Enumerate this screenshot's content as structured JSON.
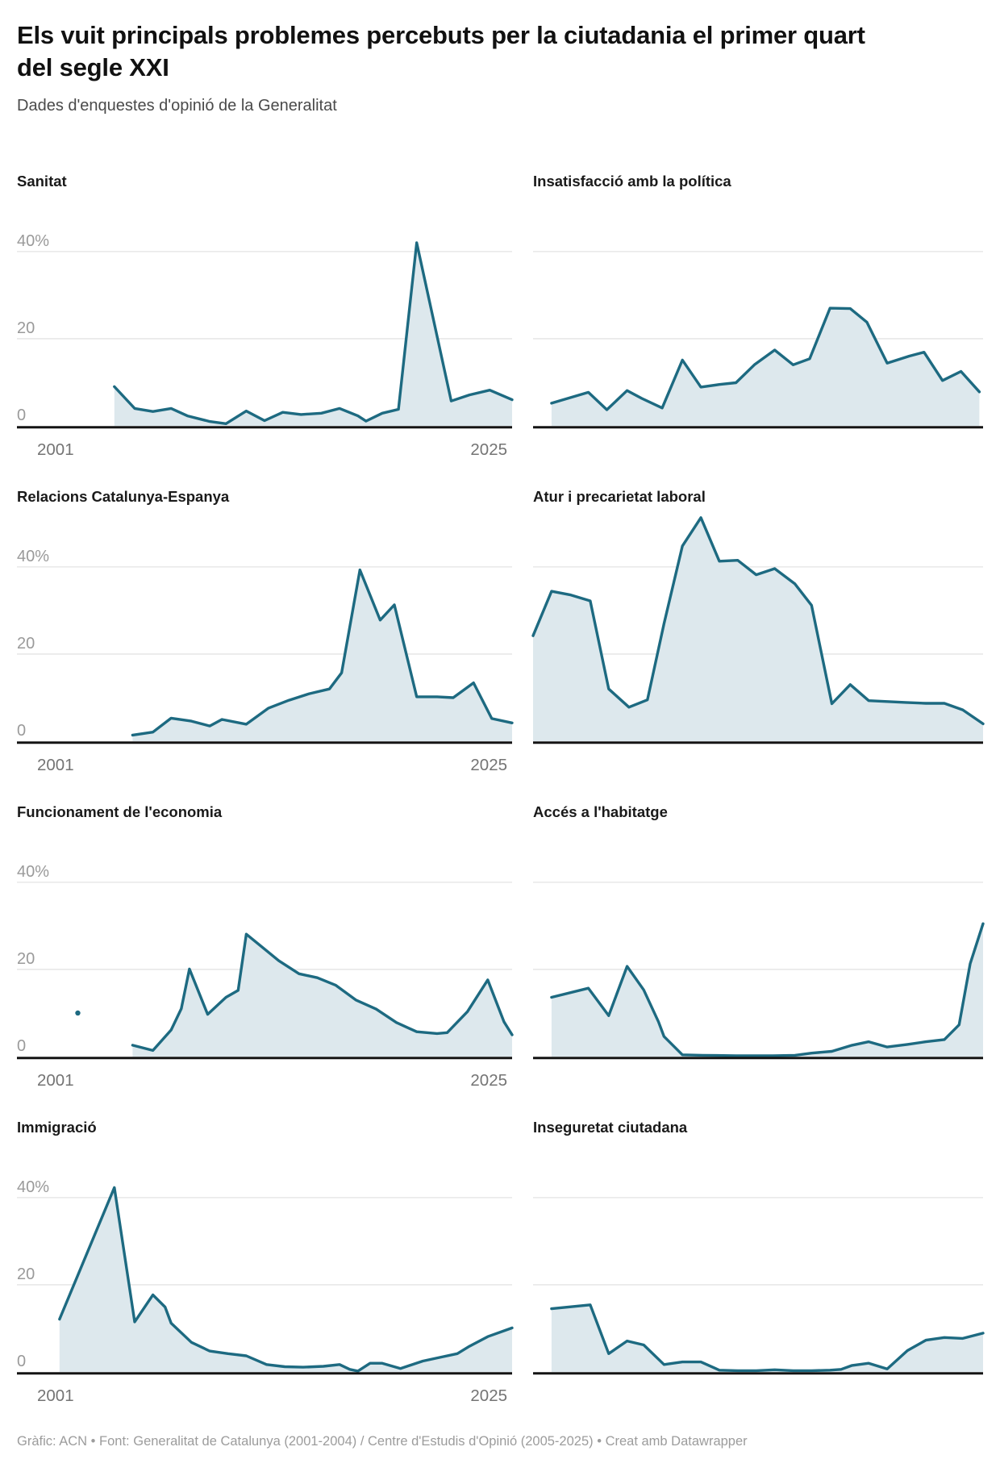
{
  "page": {
    "title": "Els vuit principals problemes percebuts per la ciutadania el primer quart del segle XXI",
    "subtitle": "Dades d'enquestes d'opinió de la Generalitat",
    "footer": "Gràfic: ACN • Font: Generalitat de Catalunya (2001-2004) / Centre d'Estudis d'Opinió (2005-2025) • Creat amb Datawrapper"
  },
  "colors": {
    "line": "#1d6a81",
    "fill": "#dde8ed",
    "grid": "#e3e3e3",
    "axis": "#141414",
    "y_label": "#9a9a9a",
    "x_label": "#747474",
    "footer": "#9c9c9c"
  },
  "axis": {
    "y_ticks": [
      "40%",
      "20",
      "0"
    ],
    "x_start": "2001",
    "x_end": "2025"
  },
  "chart_data": {
    "type": "area",
    "layout": "small-multiples 2 cols x 4 rows",
    "x_domain": [
      2001,
      2025.4
    ],
    "y_domain": [
      0,
      52
    ],
    "gridlines_pct": [
      0,
      20,
      40
    ],
    "grid": "horizontal only",
    "legend": "none",
    "unit": "% of respondents naming the issue",
    "charts": [
      {
        "title": "Sanitat",
        "column": "left",
        "axis_labels": true,
        "points": [
          [
            2005.8,
            9
          ],
          [
            2006.8,
            4
          ],
          [
            2007.7,
            3.3
          ],
          [
            2008.6,
            4
          ],
          [
            2009.4,
            2.3
          ],
          [
            2010.5,
            1
          ],
          [
            2011.3,
            0.5
          ],
          [
            2012.3,
            3.4
          ],
          [
            2013.2,
            1.2
          ],
          [
            2014.1,
            3.1
          ],
          [
            2015,
            2.6
          ],
          [
            2016,
            2.9
          ],
          [
            2016.9,
            4
          ],
          [
            2017.8,
            2.3
          ],
          [
            2018.2,
            1.1
          ],
          [
            2019,
            2.9
          ],
          [
            2019.8,
            3.8
          ],
          [
            2020.7,
            42
          ],
          [
            2022.4,
            5.7
          ],
          [
            2023.3,
            7.1
          ],
          [
            2024.3,
            8.2
          ],
          [
            2025.4,
            6
          ]
        ]
      },
      {
        "title": "Insatisfacció amb la política",
        "column": "right",
        "axis_labels": false,
        "points": [
          [
            2002,
            5.2
          ],
          [
            2004,
            7.7
          ],
          [
            2005,
            3.7
          ],
          [
            2006.1,
            8.1
          ],
          [
            2006.9,
            6.3
          ],
          [
            2008,
            4.1
          ],
          [
            2009.1,
            15.1
          ],
          [
            2010.1,
            8.9
          ],
          [
            2011.1,
            9.5
          ],
          [
            2012,
            9.9
          ],
          [
            2013,
            14
          ],
          [
            2014.1,
            17.4
          ],
          [
            2015.1,
            14
          ],
          [
            2016,
            15.4
          ],
          [
            2017.1,
            27
          ],
          [
            2018.2,
            26.9
          ],
          [
            2019.1,
            23.8
          ],
          [
            2020.2,
            14.4
          ],
          [
            2021.4,
            16
          ],
          [
            2022.2,
            16.9
          ],
          [
            2023.2,
            10.4
          ],
          [
            2024.2,
            12.5
          ],
          [
            2025.2,
            7.8
          ]
        ]
      },
      {
        "title": "Relacions Catalunya-Espanya",
        "column": "left",
        "axis_labels": true,
        "points": [
          [
            2006.7,
            1.4
          ],
          [
            2007.7,
            2.1
          ],
          [
            2008.6,
            5.3
          ],
          [
            2009.6,
            4.6
          ],
          [
            2010.5,
            3.5
          ],
          [
            2011.1,
            5
          ],
          [
            2012.3,
            3.9
          ],
          [
            2013.4,
            7.6
          ],
          [
            2014.4,
            9.4
          ],
          [
            2015.4,
            10.9
          ],
          [
            2016.4,
            12
          ],
          [
            2017,
            15.7
          ],
          [
            2017.9,
            39.3
          ],
          [
            2018.9,
            27.8
          ],
          [
            2019.6,
            31.3
          ],
          [
            2020.7,
            10.2
          ],
          [
            2021.7,
            10.2
          ],
          [
            2022.5,
            10
          ],
          [
            2023.5,
            13.4
          ],
          [
            2024.4,
            5.2
          ],
          [
            2025.4,
            4.2
          ]
        ]
      },
      {
        "title": "Atur i precarietat laboral",
        "column": "right",
        "axis_labels": false,
        "points": [
          [
            2001,
            24.2
          ],
          [
            2002,
            34.4
          ],
          [
            2003,
            33.6
          ],
          [
            2004.1,
            32.2
          ],
          [
            2005.1,
            12
          ],
          [
            2006.2,
            7.8
          ],
          [
            2007.2,
            9.5
          ],
          [
            2008.1,
            27
          ],
          [
            2009.1,
            44.8
          ],
          [
            2010.1,
            51.3
          ],
          [
            2011.1,
            41.3
          ],
          [
            2012.1,
            41.5
          ],
          [
            2013.1,
            38.2
          ],
          [
            2014.1,
            39.6
          ],
          [
            2015.2,
            36.1
          ],
          [
            2016.1,
            31.2
          ],
          [
            2017.2,
            8.6
          ],
          [
            2018.2,
            13
          ],
          [
            2019.2,
            9.3
          ],
          [
            2020.2,
            9.1
          ],
          [
            2021.2,
            8.9
          ],
          [
            2022.3,
            8.7
          ],
          [
            2023.3,
            8.7
          ],
          [
            2024.3,
            7.2
          ],
          [
            2025.4,
            4
          ]
        ]
      },
      {
        "title": "Funcionament de l'economia",
        "column": "left",
        "axis_labels": true,
        "dot": [
          2004,
          10
        ],
        "points": [
          [
            2006.7,
            2.6
          ],
          [
            2007.7,
            1.4
          ],
          [
            2008.6,
            6.1
          ],
          [
            2009.1,
            11
          ],
          [
            2009.5,
            20.1
          ],
          [
            2010.4,
            9.7
          ],
          [
            2011.3,
            13.6
          ],
          [
            2011.9,
            15.2
          ],
          [
            2012.3,
            28.1
          ],
          [
            2013.3,
            24.3
          ],
          [
            2013.9,
            22
          ],
          [
            2014.9,
            19
          ],
          [
            2015.8,
            18.1
          ],
          [
            2016.7,
            16.4
          ],
          [
            2017.7,
            13
          ],
          [
            2018.7,
            10.9
          ],
          [
            2019.7,
            7.8
          ],
          [
            2020.7,
            5.7
          ],
          [
            2021.7,
            5.3
          ],
          [
            2022.2,
            5.5
          ],
          [
            2023.2,
            10.3
          ],
          [
            2024.2,
            17.6
          ],
          [
            2025,
            8
          ],
          [
            2025.4,
            5
          ]
        ]
      },
      {
        "title": "Accés a l'habitatge",
        "column": "right",
        "axis_labels": false,
        "points": [
          [
            2002,
            13.6
          ],
          [
            2004,
            15.7
          ],
          [
            2005.1,
            9.4
          ],
          [
            2006.1,
            20.7
          ],
          [
            2007,
            15.3
          ],
          [
            2007.8,
            8
          ],
          [
            2008.1,
            4.6
          ],
          [
            2009.1,
            0.4
          ],
          [
            2010.2,
            0.3
          ],
          [
            2012,
            0.2
          ],
          [
            2014,
            0.2
          ],
          [
            2015.2,
            0.3
          ],
          [
            2016.1,
            0.8
          ],
          [
            2017.2,
            1.2
          ],
          [
            2018.3,
            2.6
          ],
          [
            2019.2,
            3.4
          ],
          [
            2020.2,
            2.2
          ],
          [
            2021.3,
            2.8
          ],
          [
            2022.3,
            3.4
          ],
          [
            2023.3,
            3.9
          ],
          [
            2024.1,
            7.3
          ],
          [
            2024.7,
            21.3
          ],
          [
            2025.4,
            30.5
          ]
        ]
      },
      {
        "title": "Immigració",
        "column": "left",
        "axis_labels": true,
        "points": [
          [
            2003.1,
            12.1
          ],
          [
            2005.8,
            42.3
          ],
          [
            2006.8,
            11.5
          ],
          [
            2007.7,
            17.7
          ],
          [
            2008.3,
            14.9
          ],
          [
            2008.6,
            11.2
          ],
          [
            2009.6,
            6.8
          ],
          [
            2010.5,
            4.8
          ],
          [
            2011.4,
            4.2
          ],
          [
            2012.3,
            3.7
          ],
          [
            2013.3,
            1.7
          ],
          [
            2014.2,
            1.2
          ],
          [
            2015.1,
            1.1
          ],
          [
            2016.1,
            1.3
          ],
          [
            2016.9,
            1.7
          ],
          [
            2017.4,
            0.6
          ],
          [
            2017.8,
            0.2
          ],
          [
            2018.4,
            2
          ],
          [
            2019,
            2
          ],
          [
            2019.9,
            0.8
          ],
          [
            2021,
            2.5
          ],
          [
            2021.9,
            3.4
          ],
          [
            2022.7,
            4.2
          ],
          [
            2023.3,
            5.9
          ],
          [
            2024.2,
            8.1
          ],
          [
            2025.4,
            10.1
          ]
        ]
      },
      {
        "title": "Inseguretat ciutadana",
        "column": "right",
        "axis_labels": false,
        "points": [
          [
            2002,
            14.5
          ],
          [
            2004.1,
            15.4
          ],
          [
            2005.1,
            4.2
          ],
          [
            2006.1,
            7.1
          ],
          [
            2007,
            6.2
          ],
          [
            2008.1,
            1.7
          ],
          [
            2009.1,
            2.3
          ],
          [
            2010.1,
            2.3
          ],
          [
            2011.1,
            0.4
          ],
          [
            2012.1,
            0.3
          ],
          [
            2013.1,
            0.3
          ],
          [
            2014.1,
            0.5
          ],
          [
            2015.1,
            0.3
          ],
          [
            2016.1,
            0.3
          ],
          [
            2017.1,
            0.4
          ],
          [
            2017.7,
            0.6
          ],
          [
            2018.3,
            1.5
          ],
          [
            2019.2,
            2
          ],
          [
            2020.2,
            0.7
          ],
          [
            2021.3,
            4.9
          ],
          [
            2022.3,
            7.3
          ],
          [
            2023.3,
            7.9
          ],
          [
            2024.3,
            7.7
          ],
          [
            2025.4,
            8.9
          ]
        ]
      }
    ]
  }
}
